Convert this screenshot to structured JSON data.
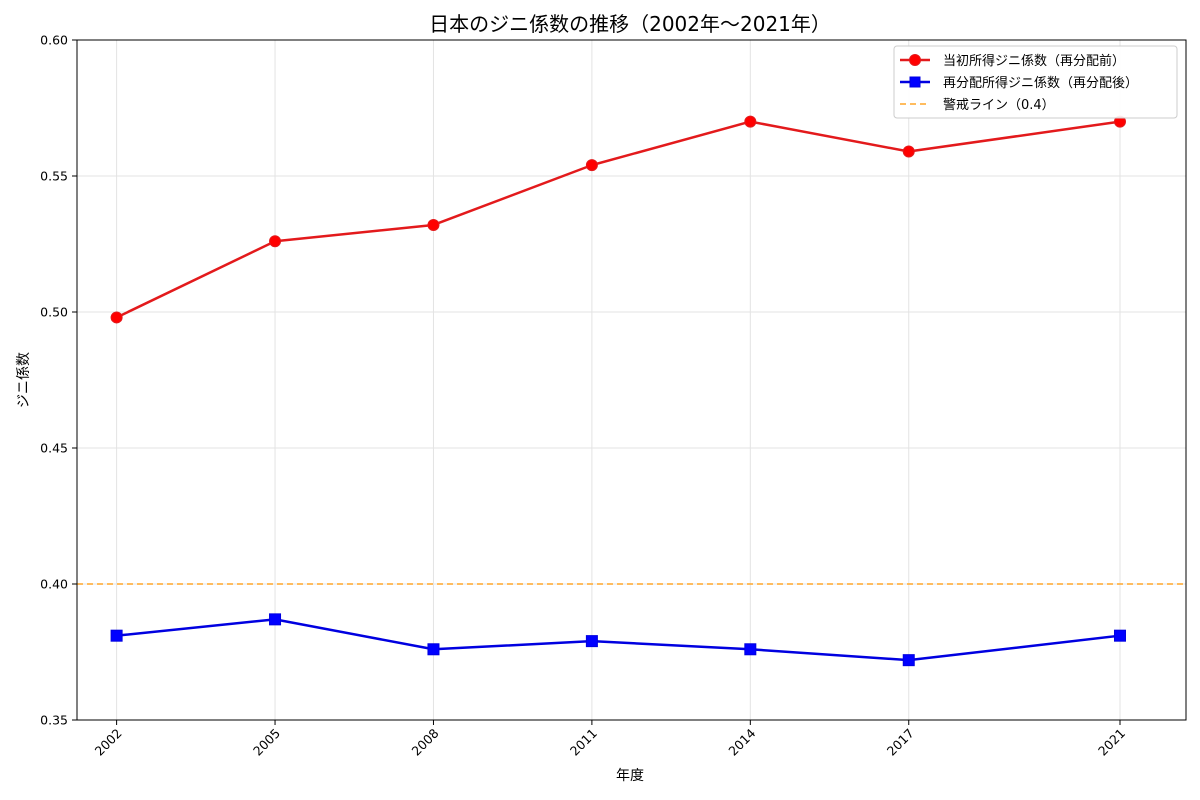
{
  "chart_data": {
    "type": "line",
    "title": "日本のジニ係数の推移（2002年〜2021年）",
    "xlabel": "年度",
    "ylabel": "ジニ係数",
    "x": [
      2002,
      2005,
      2008,
      2011,
      2014,
      2017,
      2021
    ],
    "x_tick_labels": [
      "2002",
      "2005",
      "2008",
      "2011",
      "2014",
      "2017",
      "2021"
    ],
    "ylim": [
      0.35,
      0.6
    ],
    "y_ticks": [
      0.35,
      0.4,
      0.45,
      0.5,
      0.55,
      0.6
    ],
    "y_tick_labels": [
      "0.35",
      "0.40",
      "0.45",
      "0.50",
      "0.55",
      "0.60"
    ],
    "grid": true,
    "legend_position": "top-right",
    "series": [
      {
        "name": "当初所得ジニ係数（再分配前）",
        "values": [
          0.498,
          0.526,
          0.532,
          0.554,
          0.57,
          0.559,
          0.57
        ],
        "color": "#e31a1c",
        "marker": "circle"
      },
      {
        "name": "再分配所得ジニ係数（再分配後）",
        "values": [
          0.381,
          0.387,
          0.376,
          0.379,
          0.376,
          0.372,
          0.381
        ],
        "color": "#0000e0",
        "marker": "square"
      }
    ],
    "reference_lines": [
      {
        "name": "警戒ライン（0.4）",
        "value": 0.4,
        "color": "#ffb347",
        "style": "dashed"
      }
    ]
  }
}
